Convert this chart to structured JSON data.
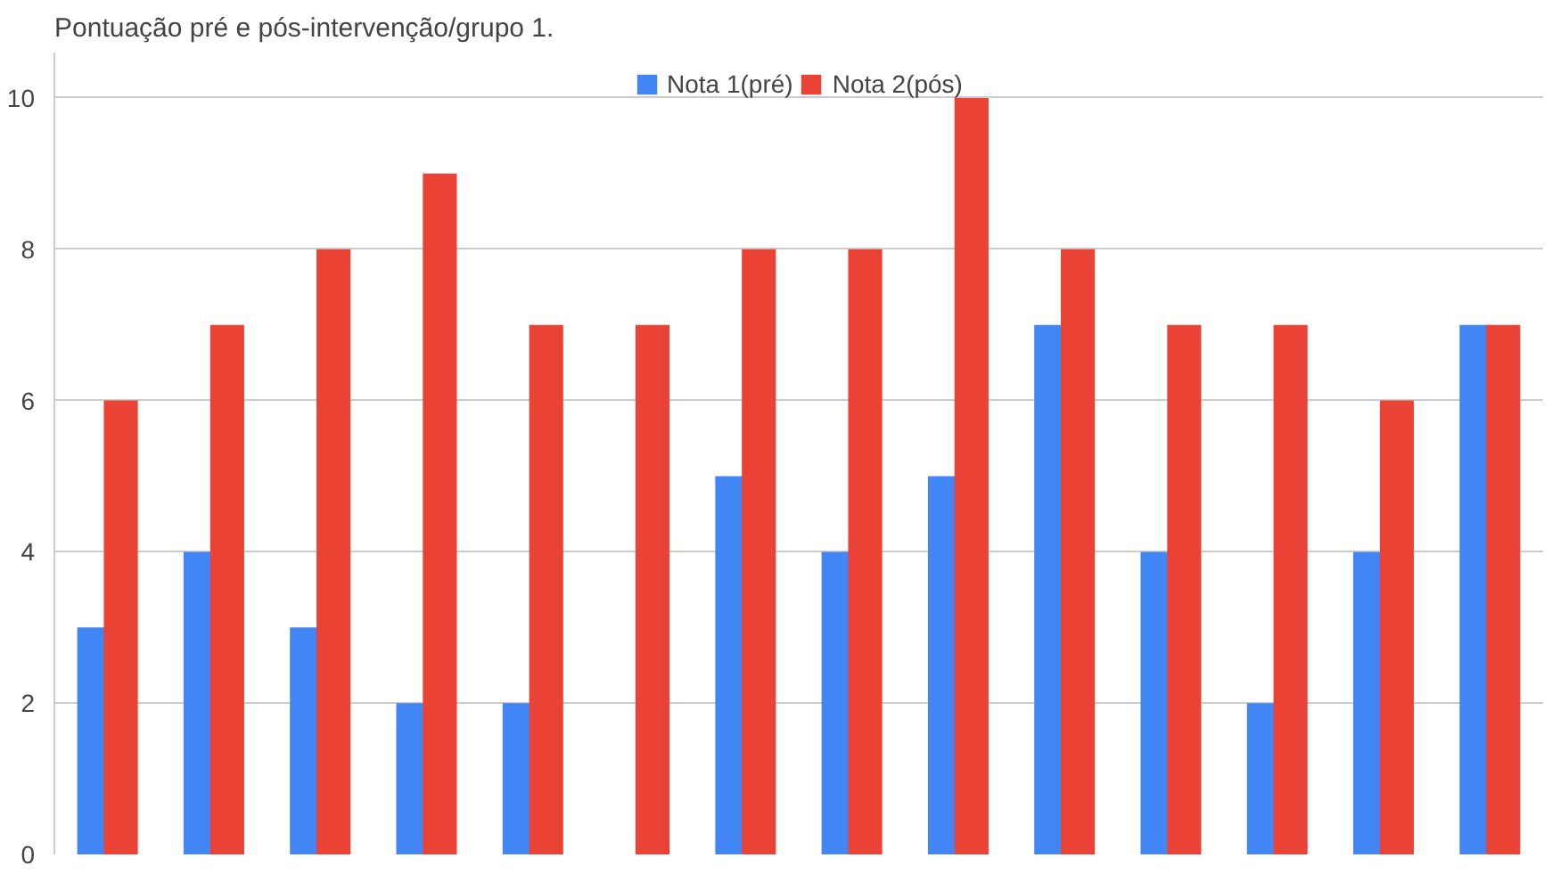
{
  "chart_data": {
    "type": "bar",
    "title": "Pontuação pré e pós-intervenção/grupo 1.",
    "categories": [
      null,
      null,
      null,
      null,
      null,
      null,
      null,
      null,
      null,
      null,
      null,
      null,
      null,
      null
    ],
    "series": [
      {
        "name": "Nota 1(pré)",
        "color": "#4285f4",
        "values": [
          3,
          4,
          3,
          2,
          2,
          0,
          5,
          4,
          5,
          7,
          4,
          2,
          4,
          7
        ]
      },
      {
        "name": "Nota 2(pós)",
        "color": "#ea4335",
        "values": [
          6,
          7,
          8,
          9,
          7,
          7,
          8,
          8,
          10,
          8,
          7,
          7,
          6,
          7
        ]
      }
    ],
    "ylim": [
      0,
      10.6
    ],
    "yticks": [
      0,
      2,
      4,
      6,
      8,
      10
    ],
    "grid": "y",
    "legend": "top",
    "tick_labels": "y"
  }
}
